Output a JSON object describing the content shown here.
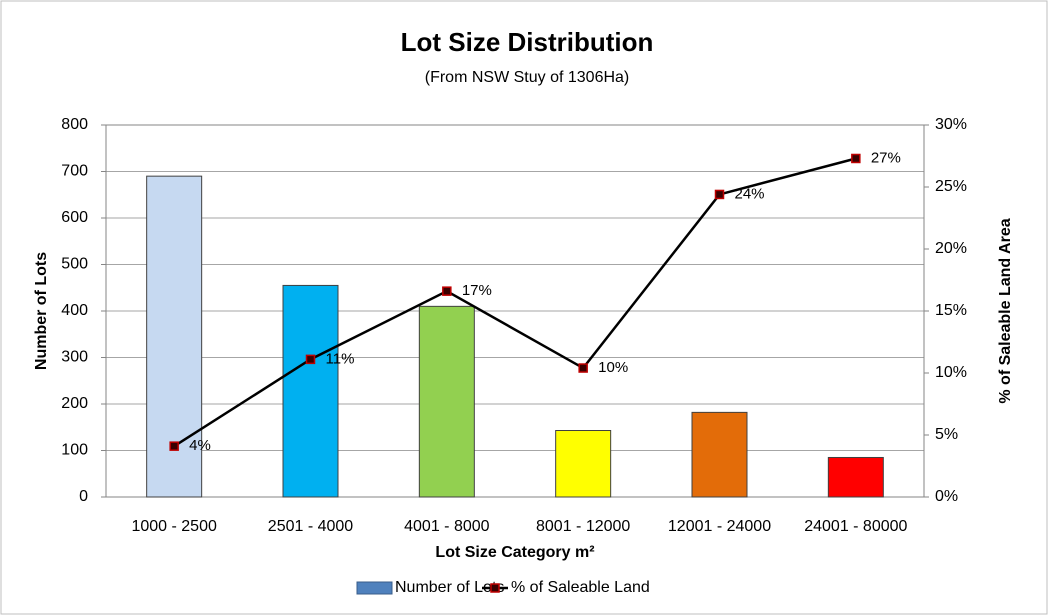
{
  "chart_data": {
    "type": "bar",
    "title": "Lot Size Distribution",
    "subtitle": "(From NSW Stuy of 1306Ha)",
    "x_label": "Lot Size Category m²",
    "y_label": "Number of Lots",
    "y2_label": "% of Saleable Land Area",
    "categories": [
      "1000 - 2500",
      "2501 - 4000",
      "4001 - 8000",
      "8001 - 12000",
      "12001 - 24000",
      "24001 - 80000"
    ],
    "series": [
      {
        "name": "Number of Lots",
        "type": "bar",
        "color": "#4f81bd",
        "colors": [
          "#c6d9f1",
          "#00b0f0",
          "#92d050",
          "#ffff00",
          "#e36c09",
          "#ff0000"
        ],
        "values": [
          690,
          455,
          410,
          143,
          182,
          85
        ]
      },
      {
        "name": "% of Saleable Land",
        "type": "line",
        "axis": "y2",
        "color": "#000000",
        "marker_color": "#c00000",
        "values": [
          4.1,
          11.1,
          16.6,
          10.4,
          24.4,
          27.3
        ],
        "value_labels": [
          "4%",
          "11%",
          "17%",
          "10%",
          "24%",
          "27%"
        ]
      }
    ],
    "ylim": [
      0,
      800
    ],
    "yticks": [
      0,
      100,
      200,
      300,
      400,
      500,
      600,
      700,
      800
    ],
    "y2lim": [
      0,
      30
    ],
    "y2ticks": [
      {
        "value": 0,
        "label": "0%"
      },
      {
        "value": 5,
        "label": "5%"
      },
      {
        "value": 10,
        "label": "10%"
      },
      {
        "value": 15,
        "label": "15%"
      },
      {
        "value": 20,
        "label": "20%"
      },
      {
        "value": 25,
        "label": "25%"
      },
      {
        "value": 30,
        "label": "30%"
      }
    ],
    "grid": true,
    "legend": "bottom"
  }
}
